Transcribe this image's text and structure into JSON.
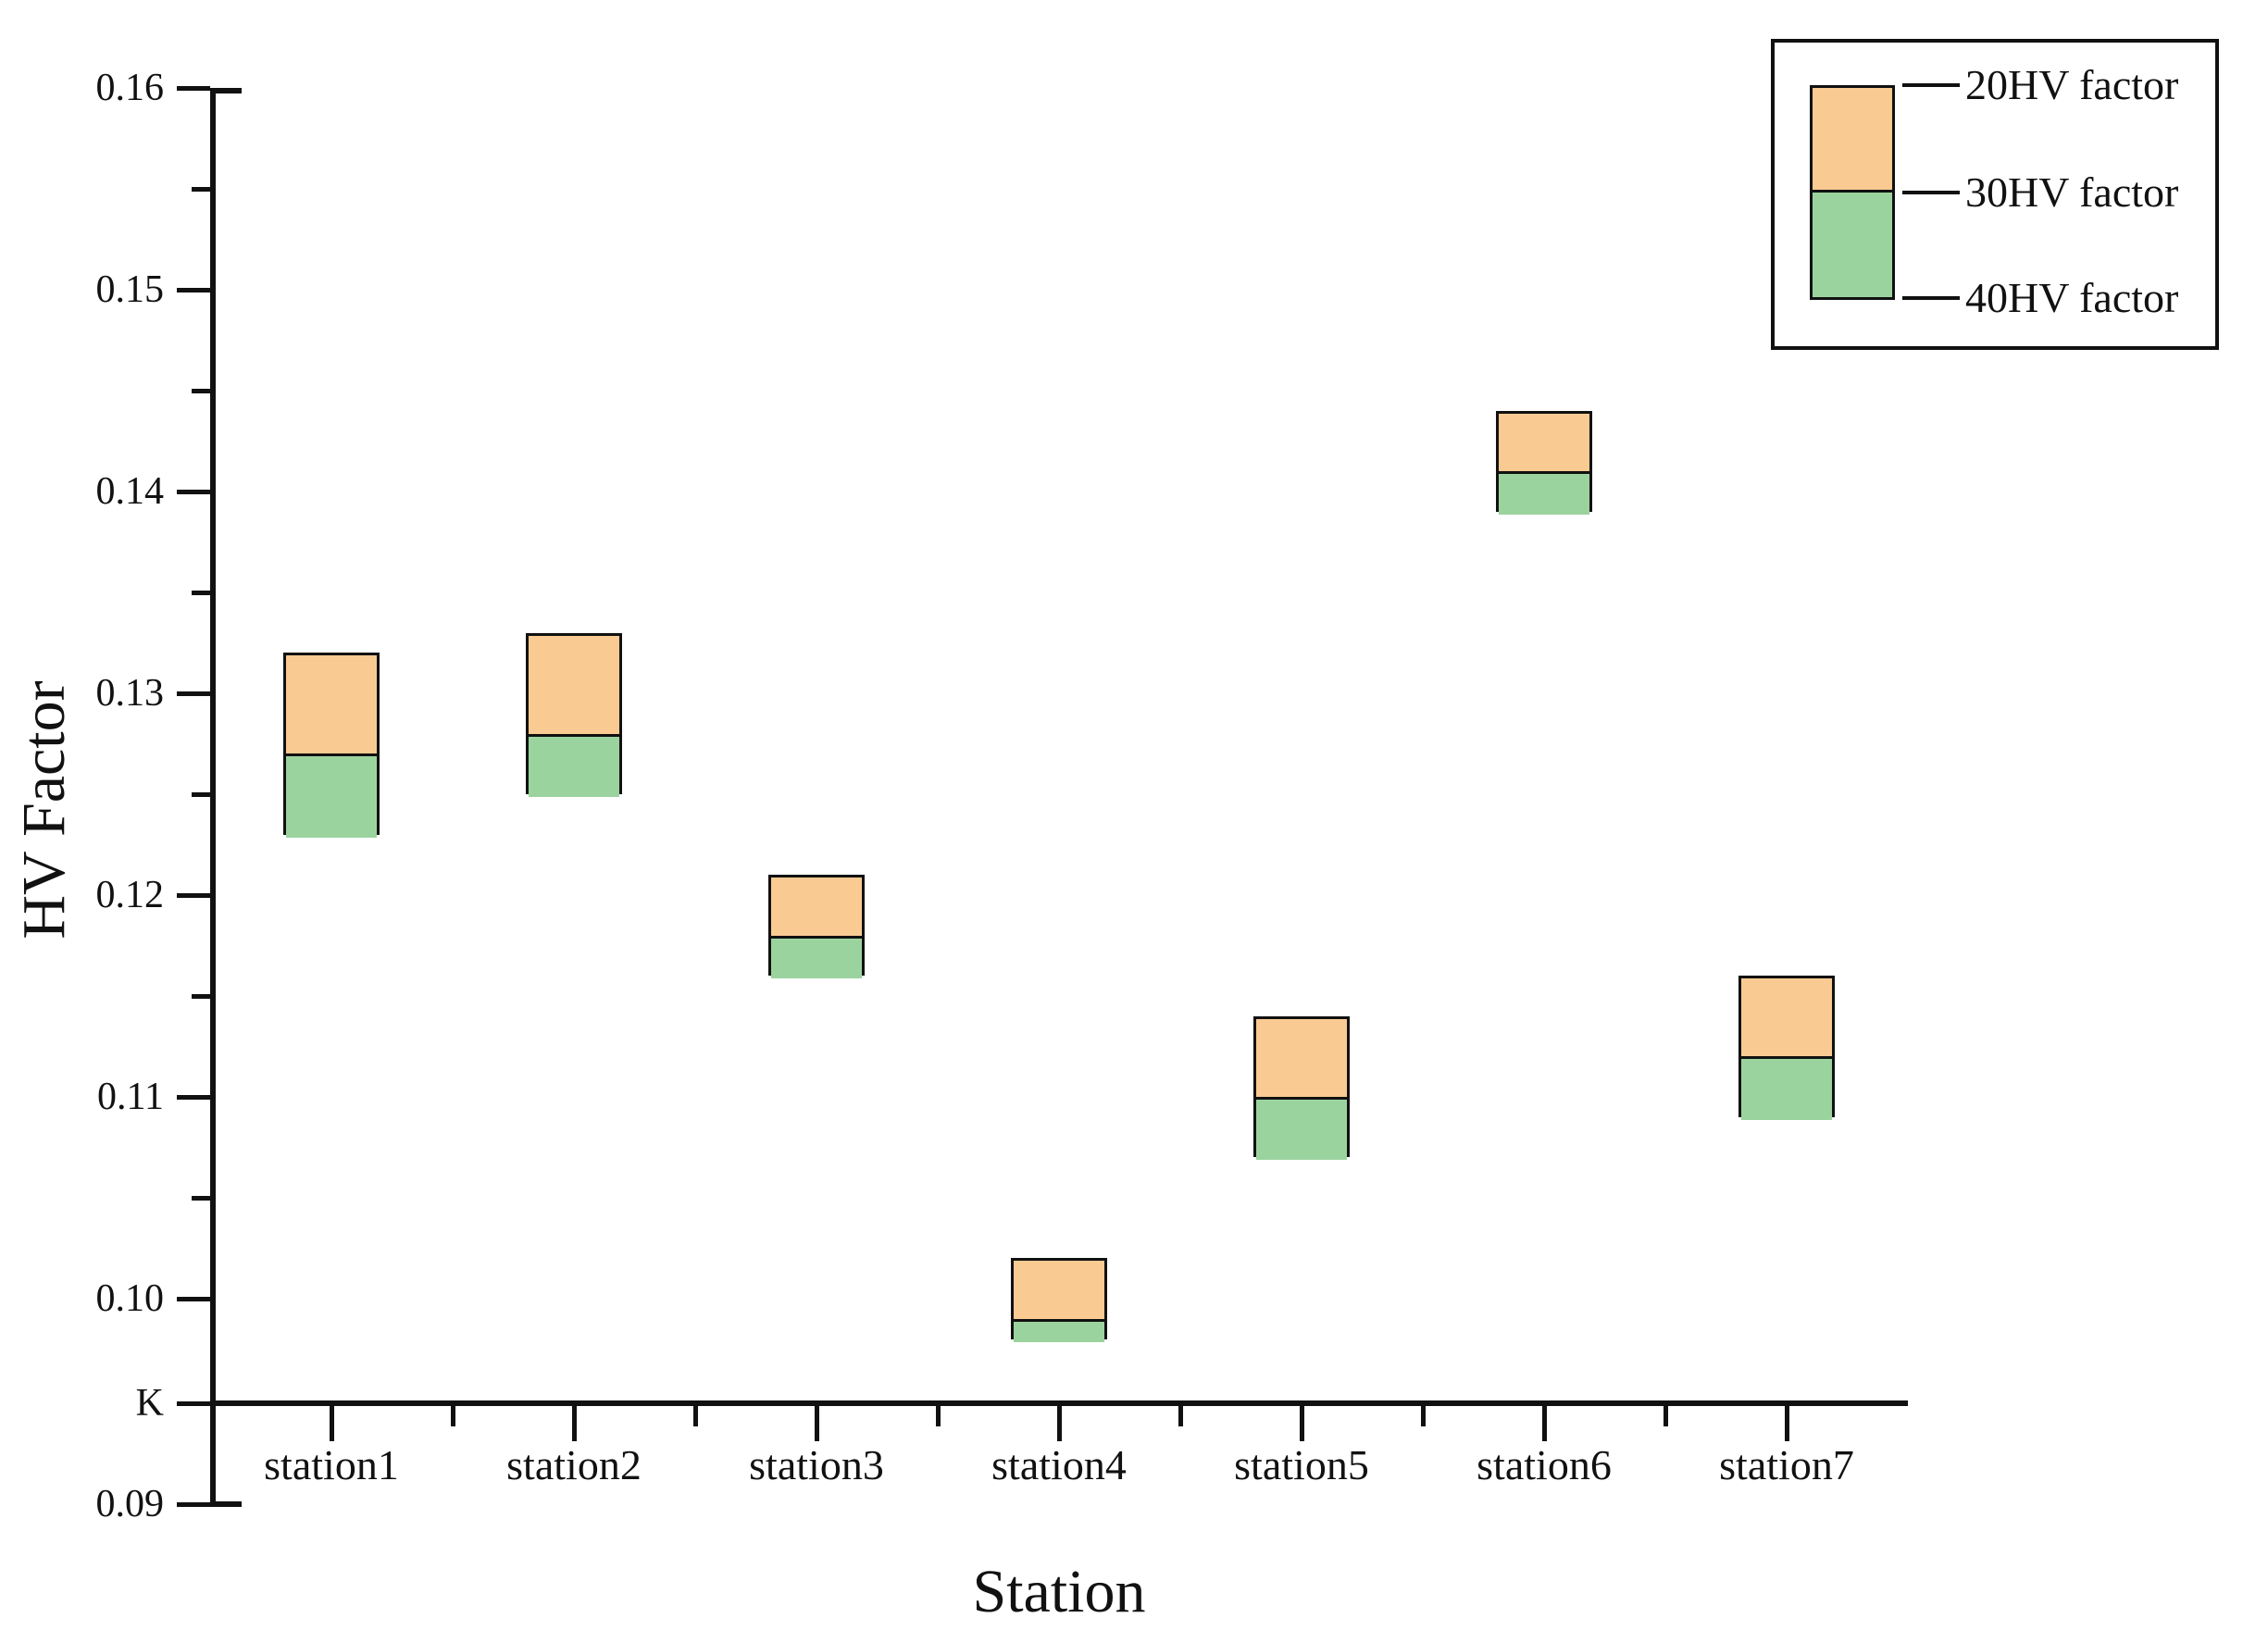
{
  "chart_data": {
    "type": "bar",
    "subtype": "floating-stacked-range-bars",
    "title": "",
    "xlabel": "Station",
    "ylabel": "HV Factor",
    "categories": [
      "station1",
      "station2",
      "station3",
      "station4",
      "station5",
      "station6",
      "station7"
    ],
    "series": [
      {
        "name": "20HV factor",
        "values": [
          0.132,
          0.133,
          0.121,
          0.102,
          0.114,
          0.144,
          0.116
        ]
      },
      {
        "name": "30HV factor",
        "values": [
          0.127,
          0.128,
          0.118,
          0.099,
          0.11,
          0.141,
          0.112
        ]
      },
      {
        "name": "40HV factor",
        "values": [
          0.123,
          0.125,
          0.116,
          0.098,
          0.107,
          0.139,
          0.109
        ]
      }
    ],
    "segment_meaning": "orange segment spans 30HV-to-20HV value, green segment spans 40HV-to-30HV value",
    "y_axis": {
      "majors": [
        {
          "label": "0.16",
          "v": 0.16
        },
        {
          "label": "0.15",
          "v": 0.15
        },
        {
          "label": "0.14",
          "v": 0.14
        },
        {
          "label": "0.13",
          "v": 0.13
        },
        {
          "label": "0.12",
          "v": 0.12
        },
        {
          "label": "0.11",
          "v": 0.11
        },
        {
          "label": "0.10",
          "v": 0.1
        },
        {
          "label": "K",
          "pos": "break"
        },
        {
          "label": "0.09",
          "pos": "bottom"
        }
      ],
      "minor_tick_values": [
        0.155,
        0.145,
        0.135,
        0.125,
        0.115,
        0.105
      ],
      "break_label": "K",
      "ylim_top": 0.16,
      "ylim_bottom_label": 0.09
    },
    "legend_position": "top-right",
    "grid": false,
    "colors": {
      "orange_fill": "#F9CA92",
      "green_fill": "#9BD39F",
      "line": "#111111",
      "background": "#FFFFFF"
    }
  }
}
